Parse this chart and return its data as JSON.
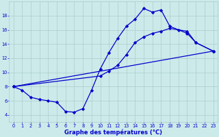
{
  "xlabel": "Graphe des températures (°C)",
  "bg_color": "#cceaea",
  "grid_color": "#aacccc",
  "line_color": "#0000cc",
  "marker": "D",
  "markersize": 2.2,
  "linewidth": 0.9,
  "xlim": [
    -0.5,
    23.5
  ],
  "ylim": [
    3.0,
    20.0
  ],
  "yticks": [
    4,
    6,
    8,
    10,
    12,
    14,
    16,
    18
  ],
  "xticks": [
    0,
    1,
    2,
    3,
    4,
    5,
    6,
    7,
    8,
    9,
    10,
    11,
    12,
    13,
    14,
    15,
    16,
    17,
    18,
    19,
    20,
    21,
    22,
    23
  ],
  "curve1_x": [
    0,
    1,
    2,
    3,
    4,
    5,
    6,
    7,
    8,
    9,
    10,
    11,
    12,
    13,
    14,
    15,
    16,
    17,
    18,
    20,
    21,
    23
  ],
  "curve1_y": [
    8.0,
    7.5,
    6.5,
    6.2,
    6.0,
    5.8,
    4.5,
    4.4,
    4.9,
    7.5,
    10.5,
    12.8,
    14.8,
    16.5,
    17.5,
    19.0,
    18.5,
    18.8,
    16.5,
    15.5,
    14.2,
    13.0
  ],
  "curve2_x": [
    0,
    10,
    11,
    12,
    13,
    14,
    15,
    16,
    17,
    18,
    19,
    20,
    21,
    23
  ],
  "curve2_y": [
    8.0,
    9.5,
    10.2,
    11.0,
    12.5,
    14.2,
    15.0,
    15.5,
    15.8,
    16.2,
    16.0,
    15.8,
    14.2,
    13.0
  ],
  "curve3_x": [
    0,
    23
  ],
  "curve3_y": [
    8.0,
    13.0
  ]
}
